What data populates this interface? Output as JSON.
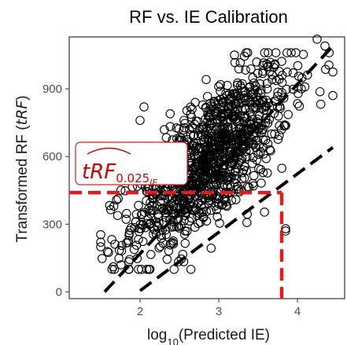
{
  "chart_data": {
    "type": "scatter",
    "title": "RF vs. IE Calibration",
    "xlabel_prefix": "log",
    "xlabel_sub": "10",
    "xlabel_suffix": "(Predicted IE)",
    "ylabel_prefix": "Transformed RF (",
    "ylabel_italic": "tRF",
    "ylabel_suffix": ")",
    "xlim": [
      1.1,
      4.6
    ],
    "ylim": [
      -30,
      1130
    ],
    "x_ticks": [
      2,
      3,
      4
    ],
    "y_ticks": [
      0,
      300,
      600,
      900
    ],
    "x_tick_labels": [
      "2",
      "3",
      "4"
    ],
    "y_tick_labels": [
      "0",
      "300",
      "600",
      "900"
    ],
    "grid": false,
    "marker": "open-circle",
    "point_color": "#000000",
    "fit_line": {
      "style": "dashed",
      "color": "#000000",
      "x": [
        1.55,
        4.45
      ],
      "y": [
        0,
        1090
      ]
    },
    "lower_bound_line": {
      "style": "dashed",
      "color": "#000000",
      "x": [
        2.0,
        4.45
      ],
      "y": [
        5,
        640
      ]
    },
    "threshold": {
      "color": "#e41a1c",
      "y_value": 440,
      "x_value": 3.8,
      "label_main": "tRF",
      "label_sub": "0.025",
      "label_subsub": "IE"
    },
    "points": {
      "count": 1100,
      "x_center": 2.9,
      "x_spread": 0.5,
      "slope": 290,
      "intercept": -250,
      "y_noise": 145,
      "outliers": [
        [
          4.25,
          1120
        ],
        [
          4.35,
          1090
        ],
        [
          4.45,
          975
        ],
        [
          4.45,
          870
        ],
        [
          3.2,
          1050
        ],
        [
          3.85,
          270
        ],
        [
          3.85,
          280
        ],
        [
          2.05,
          820
        ],
        [
          2.0,
          760
        ],
        [
          1.6,
          175
        ],
        [
          1.5,
          200
        ]
      ]
    }
  }
}
